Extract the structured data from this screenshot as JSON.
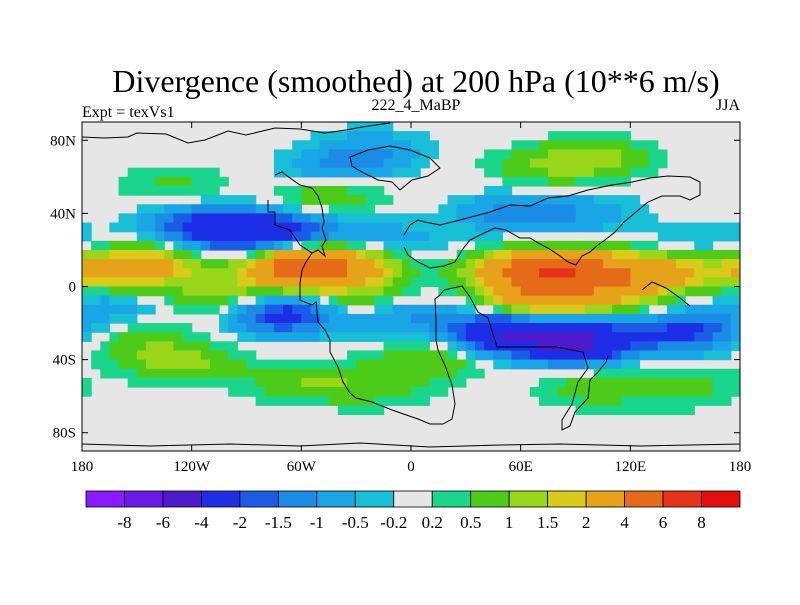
{
  "chart_data": {
    "type": "heatmap",
    "title": "Divergence (smoothed) at 200 hPa (10**6 m/s)",
    "left_string": "Expt = texVs1",
    "center_string": "222_4_MaBP",
    "right_string": "JJA",
    "xlim": [
      -180,
      180
    ],
    "ylim": [
      -90,
      90
    ],
    "x_ticks": [
      {
        "value": -180,
        "label": "180"
      },
      {
        "value": -120,
        "label": "120W"
      },
      {
        "value": -60,
        "label": "60W"
      },
      {
        "value": 0,
        "label": "0"
      },
      {
        "value": 60,
        "label": "60E"
      },
      {
        "value": 120,
        "label": "120E"
      },
      {
        "value": 180,
        "label": "180"
      }
    ],
    "y_ticks": [
      {
        "value": 80,
        "label": "80N"
      },
      {
        "value": 40,
        "label": "40N"
      },
      {
        "value": 0,
        "label": "0"
      },
      {
        "value": -40,
        "label": "40S"
      },
      {
        "value": -80,
        "label": "80S"
      }
    ],
    "levels": [
      "-8",
      "-6",
      "-4",
      "-2",
      "-1.5",
      "-1",
      "-0.5",
      "-0.2",
      "0.2",
      "0.5",
      "1",
      "1.5",
      "2",
      "4",
      "6",
      "8"
    ],
    "colors": [
      "#8c1aff",
      "#6b1ae6",
      "#4d1acc",
      "#1e2ee6",
      "#1a5ce6",
      "#1a8ce6",
      "#19a5e6",
      "#19bfd6",
      "#e6e6e6",
      "#19d68c",
      "#4ccc19",
      "#99d619",
      "#d9cc19",
      "#e6a319",
      "#e66b19",
      "#e63319",
      "#e60d0d"
    ],
    "field_regions": [
      {
        "lon": -95,
        "lat": 30,
        "value": -3.0
      },
      {
        "lon": -120,
        "lat": 35,
        "value": -1.2
      },
      {
        "lon": -60,
        "lat": 30,
        "value": -1.5
      },
      {
        "lon": -10,
        "lat": 25,
        "value": -0.8
      },
      {
        "lon": 55,
        "lat": 40,
        "value": -1.2
      },
      {
        "lon": 95,
        "lat": 40,
        "value": -0.8
      },
      {
        "lon": -40,
        "lat": 65,
        "value": -1.1
      },
      {
        "lon": -20,
        "lat": 75,
        "value": -0.8
      },
      {
        "lon": 160,
        "lat": 25,
        "value": -0.6
      },
      {
        "lon": 100,
        "lat": 8,
        "value": 3.5
      },
      {
        "lon": 65,
        "lat": 8,
        "value": 4.5
      },
      {
        "lon": 140,
        "lat": 8,
        "value": 2.0
      },
      {
        "lon": -140,
        "lat": 12,
        "value": 1.6
      },
      {
        "lon": -165,
        "lat": 8,
        "value": 2.2
      },
      {
        "lon": -60,
        "lat": 10,
        "value": 5.0
      },
      {
        "lon": -30,
        "lat": 12,
        "value": 1.8
      },
      {
        "lon": -105,
        "lat": -5,
        "value": 1.2
      },
      {
        "lon": -25,
        "lat": -8,
        "value": 1.3
      },
      {
        "lon": 70,
        "lat": -8,
        "value": 2.6
      },
      {
        "lon": 110,
        "lat": -4,
        "value": 1.5
      },
      {
        "lon": -45,
        "lat": 50,
        "value": 1.0
      },
      {
        "lon": 100,
        "lat": 70,
        "value": 1.2
      },
      {
        "lon": 70,
        "lat": 65,
        "value": 0.7
      },
      {
        "lon": -130,
        "lat": 55,
        "value": 0.6
      },
      {
        "lon": -70,
        "lat": -15,
        "value": -2.5
      },
      {
        "lon": -10,
        "lat": -15,
        "value": -1.4
      },
      {
        "lon": 50,
        "lat": -25,
        "value": -3.5
      },
      {
        "lon": 90,
        "lat": -30,
        "value": -4.5
      },
      {
        "lon": 150,
        "lat": -25,
        "value": -2.2
      },
      {
        "lon": -165,
        "lat": -10,
        "value": -0.9
      },
      {
        "lon": -125,
        "lat": -42,
        "value": 1.2
      },
      {
        "lon": -60,
        "lat": -52,
        "value": 0.9
      },
      {
        "lon": 10,
        "lat": -40,
        "value": 1.0
      },
      {
        "lon": 100,
        "lat": -55,
        "value": 0.8
      },
      {
        "lon": 150,
        "lat": -55,
        "value": 0.7
      },
      {
        "lon": -20,
        "lat": -55,
        "value": 0.7
      },
      {
        "lon": -150,
        "lat": -30,
        "value": 0.7
      }
    ]
  }
}
